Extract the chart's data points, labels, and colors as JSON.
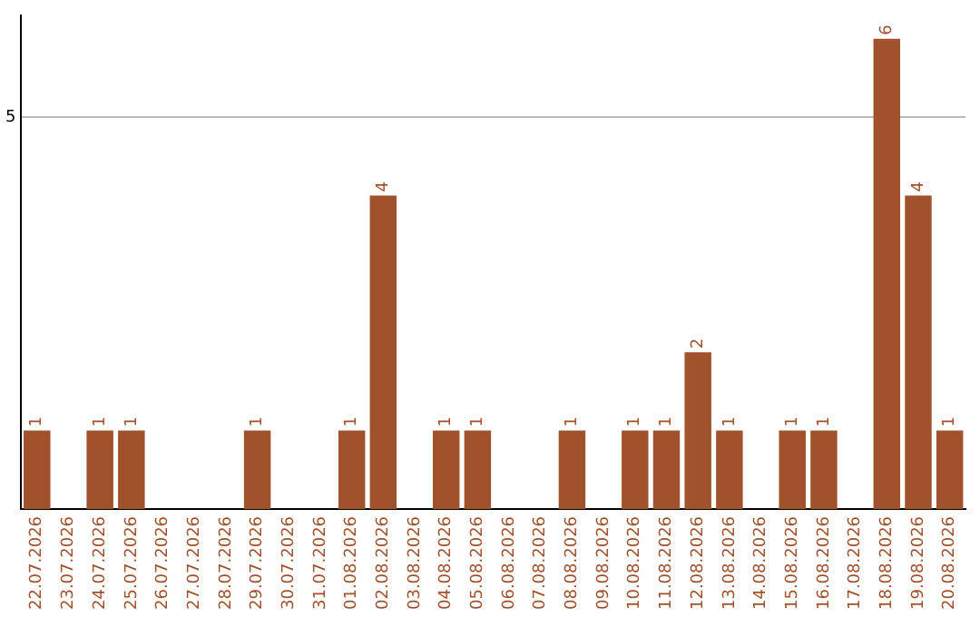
{
  "chart_data": {
    "type": "bar",
    "categories": [
      "22.07.2026",
      "23.07.2026",
      "24.07.2026",
      "25.07.2026",
      "26.07.2026",
      "27.07.2026",
      "28.07.2026",
      "29.07.2026",
      "30.07.2026",
      "31.07.2026",
      "01.08.2026",
      "02.08.2026",
      "03.08.2026",
      "04.08.2026",
      "05.08.2026",
      "06.08.2026",
      "07.08.2026",
      "08.08.2026",
      "09.08.2026",
      "10.08.2026",
      "11.08.2026",
      "12.08.2026",
      "13.08.2026",
      "14.08.2026",
      "15.08.2026",
      "16.08.2026",
      "17.08.2026",
      "18.08.2026",
      "19.08.2026",
      "20.08.2026"
    ],
    "values": [
      1,
      0,
      1,
      1,
      0,
      0,
      0,
      1,
      0,
      0,
      1,
      4,
      0,
      1,
      1,
      0,
      0,
      1,
      0,
      1,
      1,
      2,
      1,
      0,
      1,
      1,
      0,
      6,
      4,
      1
    ],
    "value_labels": [
      "1",
      null,
      "1",
      "1",
      null,
      null,
      null,
      "1",
      null,
      null,
      "1",
      "4",
      null,
      "1",
      "1",
      null,
      null,
      "1",
      null,
      "1",
      "1",
      "2",
      "1",
      null,
      "1",
      "1",
      null,
      "6",
      "4",
      "1"
    ],
    "color": "#a0522d",
    "ylim": [
      0,
      6.3
    ],
    "yticks": [
      5
    ],
    "grid": "y",
    "legend": false
  }
}
